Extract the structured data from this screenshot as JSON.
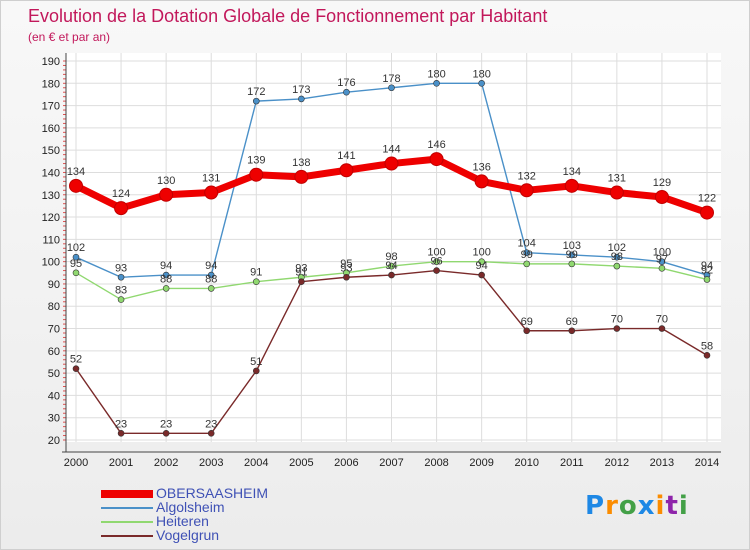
{
  "title": "Evolution de la Dotation Globale de Fonctionnement par Habitant",
  "subtitle": "(en € et par an)",
  "logo": {
    "text": "Proxiti",
    "letters": [
      {
        "ch": "P",
        "color": "#1e88e5"
      },
      {
        "ch": "r",
        "color": "#fb8c00"
      },
      {
        "ch": "o",
        "color": "#43a047"
      },
      {
        "ch": "x",
        "color": "#1e88e5"
      },
      {
        "ch": "i",
        "color": "#fb8c00"
      },
      {
        "ch": "t",
        "color": "#8e24aa"
      },
      {
        "ch": "i",
        "color": "#43a047"
      }
    ]
  },
  "chart_data": {
    "type": "line",
    "title": "Evolution de la Dotation Globale de Fonctionnement par Habitant",
    "subtitle": "(en € et par an)",
    "xlabel": "",
    "ylabel": "",
    "ylim": [
      20,
      190
    ],
    "yticks": [
      20,
      30,
      40,
      50,
      60,
      70,
      80,
      90,
      100,
      110,
      120,
      130,
      140,
      150,
      160,
      170,
      180,
      190
    ],
    "categories": [
      "2000",
      "2001",
      "2002",
      "2003",
      "2004",
      "2005",
      "2006",
      "2007",
      "2008",
      "2009",
      "2010",
      "2011",
      "2012",
      "2013",
      "2014"
    ],
    "grid": true,
    "legend": "bottom-left",
    "series": [
      {
        "name": "OBERSAASHEIM",
        "color": "#ee0000",
        "emphasis": true,
        "values": [
          134,
          124,
          130,
          131,
          139,
          138,
          141,
          144,
          146,
          136,
          132,
          134,
          131,
          129,
          122
        ]
      },
      {
        "name": "Algolsheim",
        "color": "#4a90c8",
        "emphasis": false,
        "values": [
          102,
          93,
          94,
          94,
          172,
          173,
          176,
          178,
          180,
          180,
          104,
          103,
          102,
          100,
          94
        ]
      },
      {
        "name": "Heiteren",
        "color": "#90d870",
        "emphasis": false,
        "values": [
          95,
          83,
          88,
          88,
          91,
          93,
          95,
          98,
          100,
          100,
          99,
          99,
          98,
          97,
          92
        ]
      },
      {
        "name": "Vogelgrun",
        "color": "#7a2a2a",
        "emphasis": false,
        "values": [
          52,
          23,
          23,
          23,
          51,
          91,
          93,
          94,
          96,
          94,
          69,
          69,
          70,
          70,
          58
        ]
      }
    ]
  }
}
